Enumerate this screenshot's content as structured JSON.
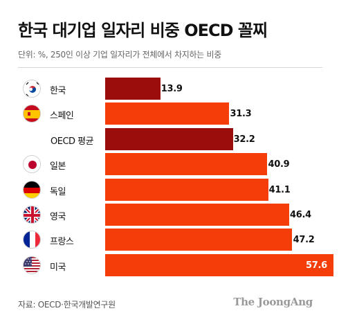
{
  "title": "한국 대기업 일자리 비중 OECD 꼴찌",
  "subtitle": "단위: %, 250인 이상 기업 일자리가 전체에서 차지하는 비중",
  "source": "자료: OECD·한국개발연구원",
  "brand": "The JoongAng",
  "colors": {
    "highlight_bar": "#9b0d0d",
    "default_bar": "#f53d0a",
    "value_text_dark": "#111111",
    "value_text_light": "#ffffff"
  },
  "chart_data": {
    "type": "bar",
    "orientation": "horizontal",
    "categories": [
      "한국",
      "스페인",
      "OECD 평균",
      "일본",
      "독일",
      "영국",
      "프랑스",
      "미국"
    ],
    "values": [
      13.9,
      31.3,
      32.2,
      40.9,
      41.1,
      46.4,
      47.2,
      57.6
    ],
    "value_labels": [
      "13.9",
      "31.3",
      "32.2",
      "40.9",
      "41.1",
      "46.4",
      "47.2",
      "57.6"
    ],
    "flags": [
      "korea-flag",
      "spain-flag",
      "",
      "japan-flag",
      "germany-flag",
      "uk-flag",
      "france-flag",
      "usa-flag"
    ],
    "highlighted": [
      true,
      false,
      true,
      false,
      false,
      false,
      false,
      false
    ],
    "xlim": [
      0,
      60
    ]
  }
}
